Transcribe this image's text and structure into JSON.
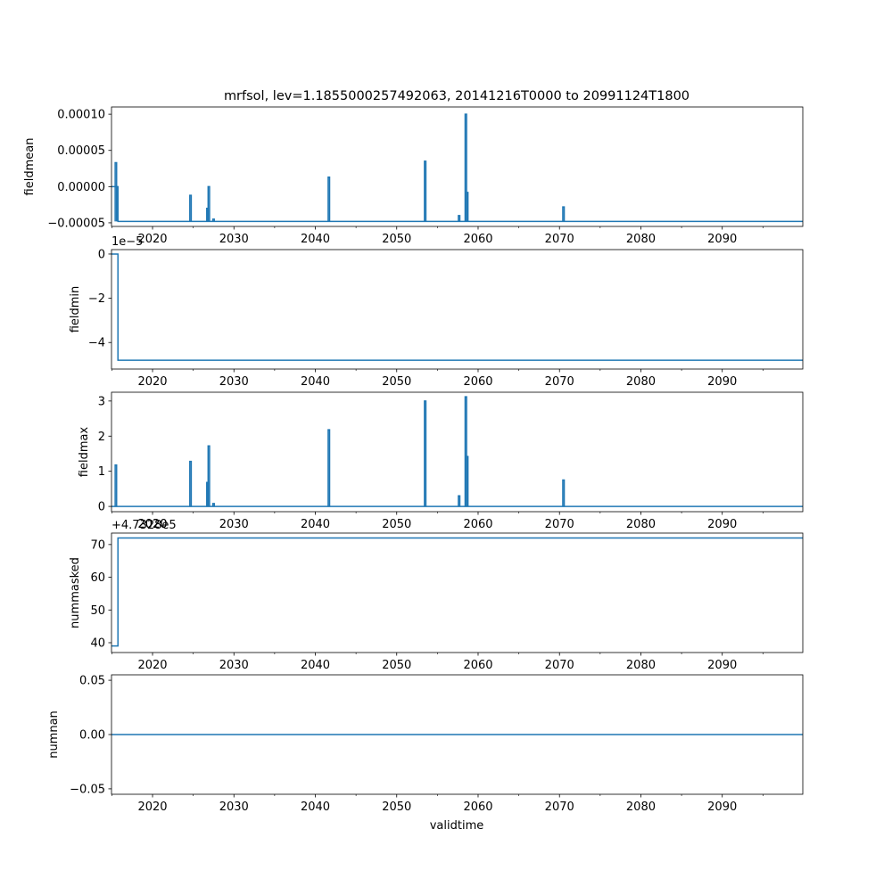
{
  "figure": {
    "title": "mrfsol, lev=1.1855000257492063, 20141216T0000 to 20991124T1800",
    "xlabel": "validtime",
    "line_color": "#1f77b4"
  },
  "chart_data": [
    {
      "type": "line",
      "ylabel": "fieldmean",
      "xlim": [
        "2014-12-16",
        "2099-11-24"
      ],
      "ylim": [
        -5.5e-05,
        0.00011
      ],
      "yticks": [
        -5e-05,
        0.0,
        5e-05,
        0.0001
      ],
      "ytick_labels": [
        "−0.00005",
        "0.00000",
        "0.00005",
        "0.00010"
      ],
      "offset_text": "",
      "baseline": {
        "value": -4.8e-05,
        "initial_value": 0.0,
        "initial_end": "2015-10-01"
      },
      "spikes": [
        {
          "x": "2015-07-01",
          "y": 3.3e-05
        },
        {
          "x": "2024-09-01",
          "y": -1.2e-05
        },
        {
          "x": "2026-10-01",
          "y": -3e-05
        },
        {
          "x": "2026-12-01",
          "y": 0.0
        },
        {
          "x": "2027-07-01",
          "y": -4.5e-05
        },
        {
          "x": "2041-09-01",
          "y": 1.3e-05
        },
        {
          "x": "2053-07-01",
          "y": 3.5e-05
        },
        {
          "x": "2057-09-01",
          "y": -4e-05
        },
        {
          "x": "2058-07-01",
          "y": 0.0001
        },
        {
          "x": "2058-09-01",
          "y": -8e-06
        },
        {
          "x": "2070-07-01",
          "y": -2.8e-05
        }
      ]
    },
    {
      "type": "line",
      "ylabel": "fieldmin",
      "xlim": [
        "2014-12-16",
        "2099-11-24"
      ],
      "ylim": [
        -5.2,
        0.2
      ],
      "yticks": [
        -4,
        -2,
        0
      ],
      "ytick_labels": [
        "−4",
        "−2",
        "0"
      ],
      "offset_text": "1e−5",
      "baseline": {
        "value": -4.8,
        "initial_value": 0.0,
        "initial_end": "2015-10-01"
      },
      "spikes": []
    },
    {
      "type": "line",
      "ylabel": "fieldmax",
      "xlim": [
        "2014-12-16",
        "2099-11-24"
      ],
      "ylim": [
        -0.15,
        3.25
      ],
      "yticks": [
        0,
        1,
        2,
        3
      ],
      "ytick_labels": [
        "0",
        "1",
        "2",
        "3"
      ],
      "offset_text": "",
      "baseline": {
        "value": 0.0,
        "initial_value": 0.0,
        "initial_end": "2015-10-01"
      },
      "spikes": [
        {
          "x": "2015-07-01",
          "y": 1.18
        },
        {
          "x": "2024-09-01",
          "y": 1.28
        },
        {
          "x": "2026-10-01",
          "y": 0.68
        },
        {
          "x": "2026-12-01",
          "y": 1.72
        },
        {
          "x": "2027-07-01",
          "y": 0.08
        },
        {
          "x": "2041-09-01",
          "y": 2.18
        },
        {
          "x": "2053-07-01",
          "y": 3.0
        },
        {
          "x": "2057-09-01",
          "y": 0.3
        },
        {
          "x": "2058-07-01",
          "y": 3.12
        },
        {
          "x": "2058-09-01",
          "y": 1.42
        },
        {
          "x": "2070-07-01",
          "y": 0.75
        }
      ]
    },
    {
      "type": "line",
      "ylabel": "nummasked",
      "xlim": [
        "2014-12-16",
        "2099-11-24"
      ],
      "ylim": [
        37,
        73.5
      ],
      "yticks": [
        40,
        50,
        60,
        70
      ],
      "ytick_labels": [
        "40",
        "50",
        "60",
        "70"
      ],
      "offset_text": "+4.7328e5",
      "baseline": {
        "value": 72,
        "initial_value": 39,
        "initial_end": "2015-10-01"
      },
      "spikes": []
    },
    {
      "type": "line",
      "ylabel": "numnan",
      "xlim": [
        "2014-12-16",
        "2099-11-24"
      ],
      "ylim": [
        -0.055,
        0.055
      ],
      "yticks": [
        -0.05,
        0.0,
        0.05
      ],
      "ytick_labels": [
        "−0.05",
        "0.00",
        "0.05"
      ],
      "offset_text": "",
      "baseline": {
        "value": 0.0,
        "initial_value": 0.0,
        "initial_end": "2015-10-01"
      },
      "spikes": []
    }
  ],
  "x_major_ticks": [
    2020,
    2030,
    2040,
    2050,
    2060,
    2070,
    2080,
    2090
  ],
  "x_major_tick_labels": [
    "2020",
    "2030",
    "2040",
    "2050",
    "2060",
    "2070",
    "2080",
    "2090"
  ],
  "x_minor_ticks": [
    2015,
    2025,
    2035,
    2045,
    2055,
    2065,
    2075,
    2085,
    2095
  ],
  "stray_labels": {
    "overlap_year": "2020"
  }
}
